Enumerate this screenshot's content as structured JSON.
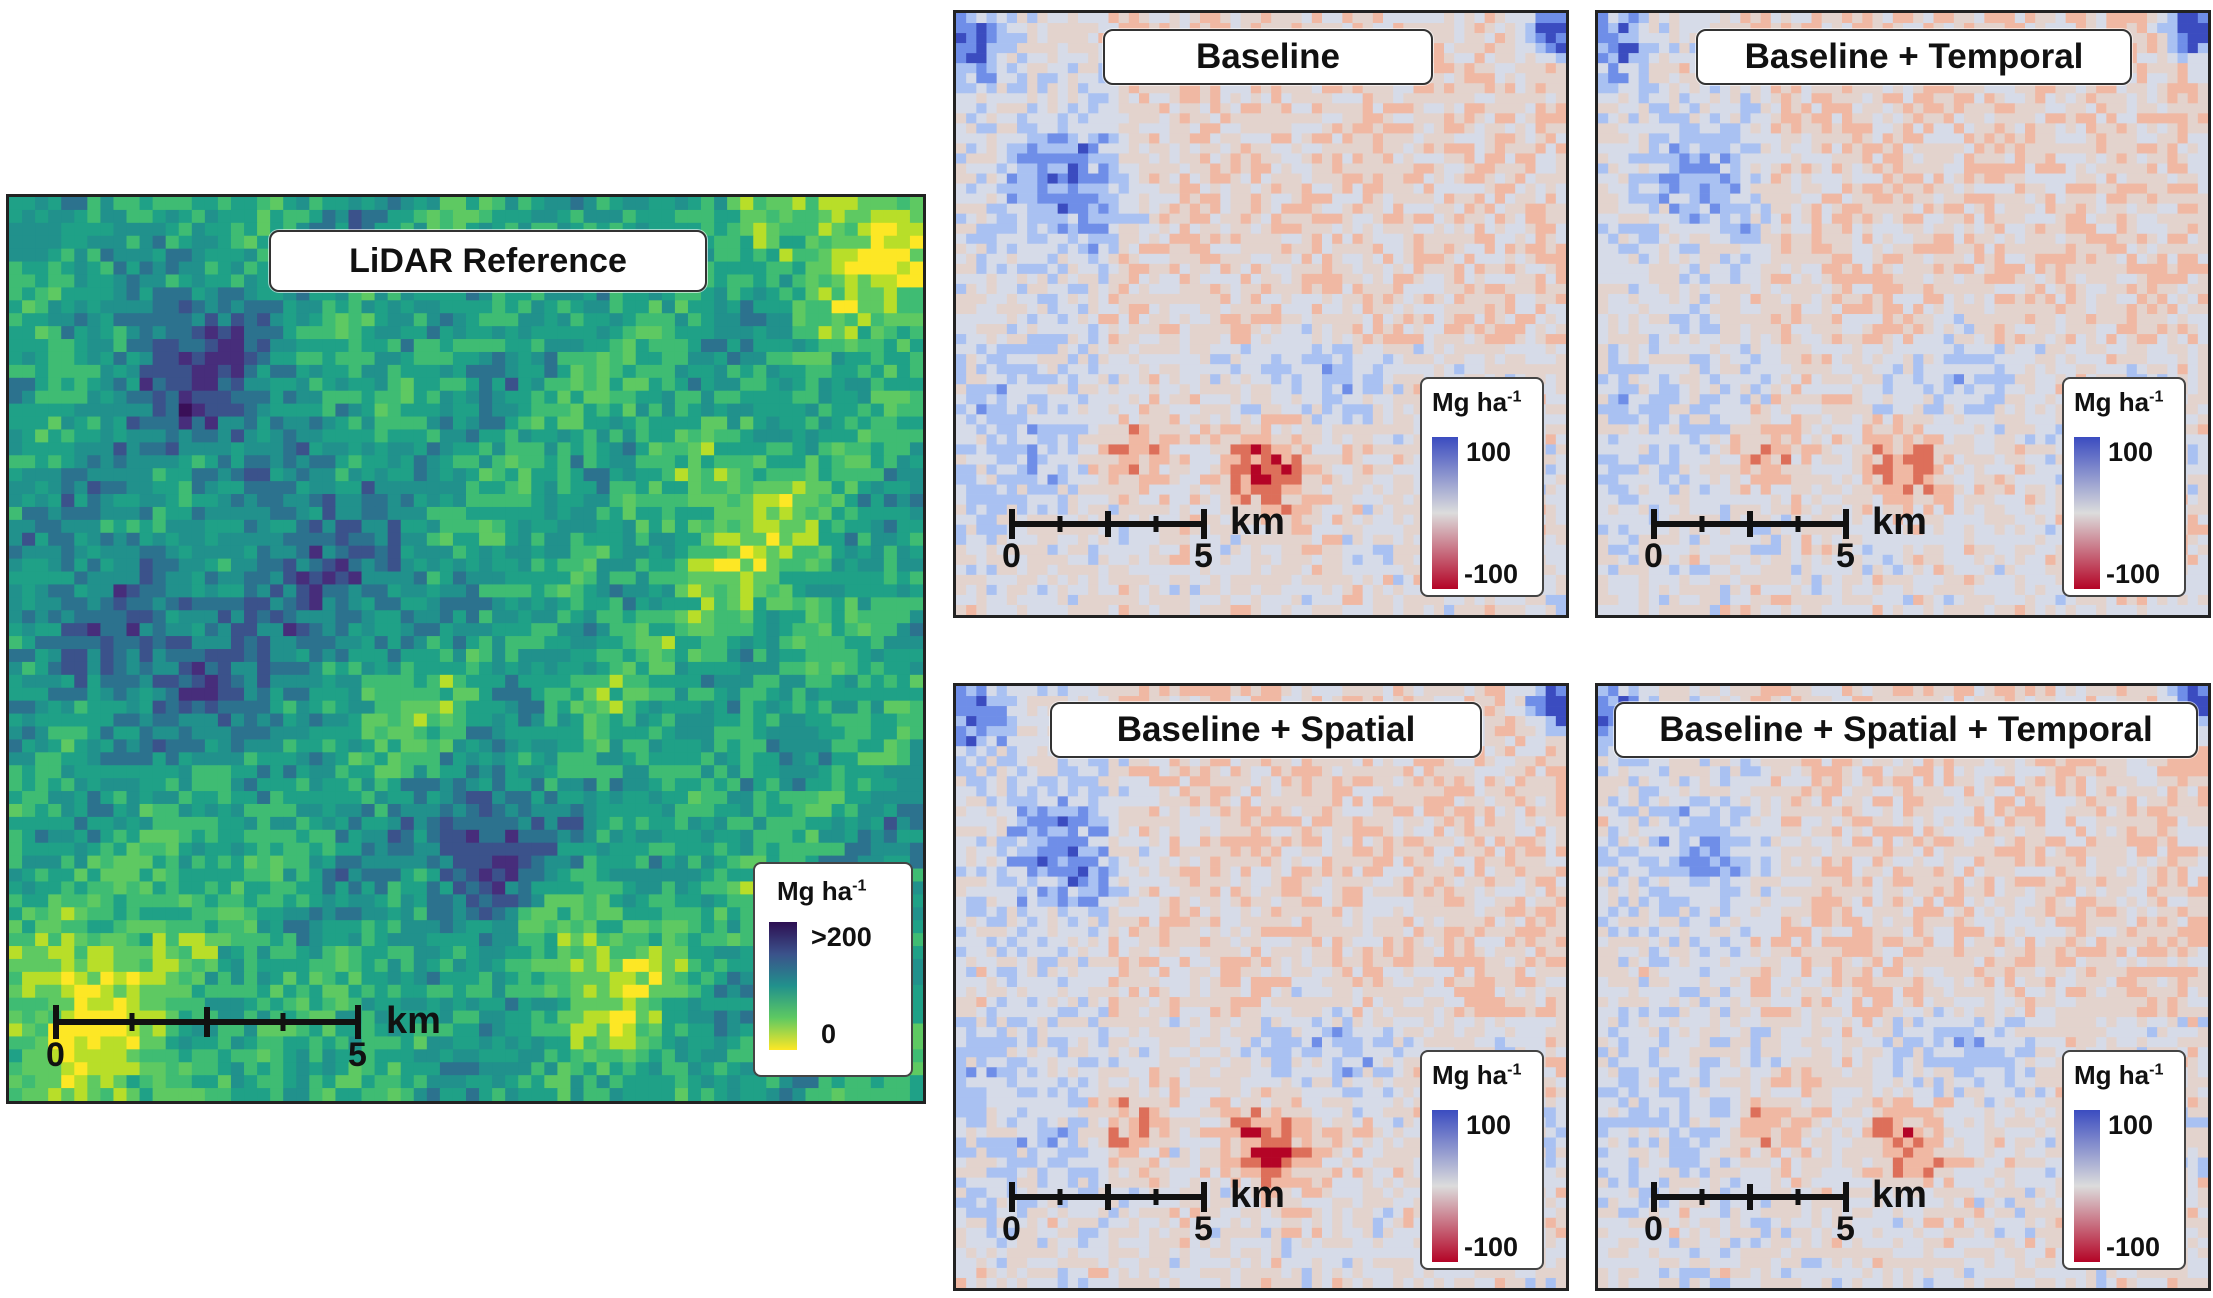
{
  "lidar": {
    "title": "LiDAR Reference",
    "legend": {
      "title": "Mg ha",
      "title_sup": "-1",
      "max_label": ">200",
      "min_label": "0",
      "colors": [
        "#2d0f52",
        "#3b528b",
        "#21918c",
        "#5ec962",
        "#fde725"
      ]
    },
    "scalebar": {
      "start": "0",
      "end": "5",
      "unit": "km"
    },
    "palette": [
      "#fde725",
      "#b8de29",
      "#5ec962",
      "#3fbc73",
      "#1fa187",
      "#21918c",
      "#2c728e",
      "#3b528b",
      "#472d7b",
      "#3a0f58"
    ]
  },
  "panels": [
    {
      "id": "baseline",
      "title": "Baseline"
    },
    {
      "id": "baseline-temporal",
      "title": "Baseline + Temporal"
    },
    {
      "id": "baseline-spatial",
      "title": "Baseline + Spatial"
    },
    {
      "id": "baseline-spatial-temporal",
      "title": "Baseline + Spatial + Temporal"
    }
  ],
  "diff_legend": {
    "title": "Mg ha",
    "title_sup": "-1",
    "max_label": "100",
    "min_label": "-100",
    "colors": [
      "#3b4cc0",
      "#dcdcdc",
      "#b40426"
    ]
  },
  "diff_scalebar": {
    "start": "0",
    "end": "5",
    "unit": "km"
  },
  "diff_palette": [
    "#3b4cc0",
    "#6f8ee8",
    "#a9c1f2",
    "#d6dbe8",
    "#e3d3cd",
    "#f0b8a3",
    "#dd6f5a",
    "#b40426"
  ]
}
